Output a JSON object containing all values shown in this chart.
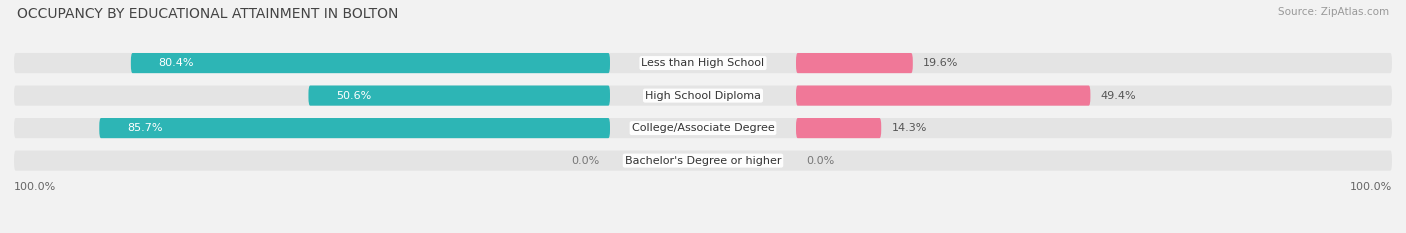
{
  "title": "OCCUPANCY BY EDUCATIONAL ATTAINMENT IN BOLTON",
  "source": "Source: ZipAtlas.com",
  "categories": [
    "Less than High School",
    "High School Diploma",
    "College/Associate Degree",
    "Bachelor's Degree or higher"
  ],
  "owner_pct": [
    80.4,
    50.6,
    85.7,
    0.0
  ],
  "renter_pct": [
    19.6,
    49.4,
    14.3,
    0.0
  ],
  "owner_color": "#2db5b5",
  "renter_color": "#f07898",
  "owner_color_light": "#a8dede",
  "renter_color_light": "#f8bcd0",
  "bg_color": "#f2f2f2",
  "bar_bg_color": "#e4e4e4",
  "title_fontsize": 10,
  "label_fontsize": 8,
  "tick_fontsize": 8,
  "source_fontsize": 7.5,
  "legend_fontsize": 8.5
}
